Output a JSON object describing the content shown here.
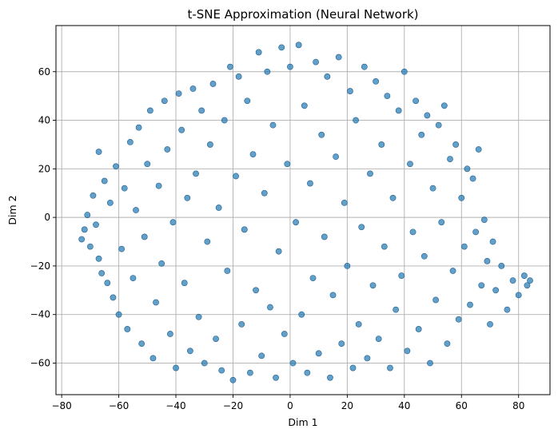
{
  "chart_data": {
    "type": "scatter",
    "title": "t-SNE Approximation (Neural Network)",
    "xlabel": "Dim 1",
    "ylabel": "Dim 2",
    "xlim": [
      -82,
      91
    ],
    "ylim": [
      -73,
      79
    ],
    "xticks": [
      -80,
      -60,
      -40,
      -20,
      0,
      20,
      40,
      60,
      80
    ],
    "yticks": [
      -60,
      -40,
      -20,
      0,
      20,
      40,
      60
    ],
    "xtick_labels": [
      "−80",
      "−60",
      "−40",
      "−20",
      "0",
      "20",
      "40",
      "60",
      "80"
    ],
    "ytick_labels": [
      "−60",
      "−40",
      "−20",
      "0",
      "20",
      "40",
      "60"
    ],
    "grid": true,
    "legend": "none",
    "marker_color": "#1f77b4",
    "marker_alpha": 0.7,
    "series": [
      {
        "points": [
          [
            -73,
            -9
          ],
          [
            -72,
            -5
          ],
          [
            -71,
            1
          ],
          [
            -70,
            -12
          ],
          [
            -69,
            9
          ],
          [
            -68,
            -3
          ],
          [
            -67,
            27
          ],
          [
            -67,
            -17
          ],
          [
            -66,
            -23
          ],
          [
            -65,
            15
          ],
          [
            -64,
            -27
          ],
          [
            -63,
            6
          ],
          [
            -62,
            -33
          ],
          [
            -61,
            21
          ],
          [
            -60,
            -40
          ],
          [
            -59,
            -13
          ],
          [
            -58,
            12
          ],
          [
            -57,
            -46
          ],
          [
            -56,
            31
          ],
          [
            -55,
            -25
          ],
          [
            -54,
            3
          ],
          [
            -53,
            37
          ],
          [
            -52,
            -52
          ],
          [
            -51,
            -8
          ],
          [
            -50,
            22
          ],
          [
            -49,
            44
          ],
          [
            -48,
            -58
          ],
          [
            -47,
            -35
          ],
          [
            -46,
            13
          ],
          [
            -45,
            -19
          ],
          [
            -44,
            48
          ],
          [
            -43,
            28
          ],
          [
            -42,
            -48
          ],
          [
            -41,
            -2
          ],
          [
            -40,
            -62
          ],
          [
            -39,
            51
          ],
          [
            -38,
            36
          ],
          [
            -37,
            -27
          ],
          [
            -36,
            8
          ],
          [
            -35,
            -55
          ],
          [
            -34,
            53
          ],
          [
            -33,
            18
          ],
          [
            -32,
            -41
          ],
          [
            -31,
            44
          ],
          [
            -30,
            -60
          ],
          [
            -29,
            -10
          ],
          [
            -28,
            30
          ],
          [
            -27,
            55
          ],
          [
            -26,
            -50
          ],
          [
            -25,
            4
          ],
          [
            -24,
            -63
          ],
          [
            -23,
            40
          ],
          [
            -22,
            -22
          ],
          [
            -21,
            62
          ],
          [
            -20,
            -67
          ],
          [
            -19,
            17
          ],
          [
            -18,
            58
          ],
          [
            -17,
            -44
          ],
          [
            -16,
            -5
          ],
          [
            -15,
            48
          ],
          [
            -14,
            -64
          ],
          [
            -13,
            26
          ],
          [
            -12,
            -30
          ],
          [
            -11,
            68
          ],
          [
            -10,
            -57
          ],
          [
            -9,
            10
          ],
          [
            -8,
            60
          ],
          [
            -7,
            -37
          ],
          [
            -6,
            38
          ],
          [
            -5,
            -66
          ],
          [
            -4,
            -14
          ],
          [
            -3,
            70
          ],
          [
            -2,
            -48
          ],
          [
            -1,
            22
          ],
          [
            0,
            62
          ],
          [
            1,
            -60
          ],
          [
            2,
            -2
          ],
          [
            3,
            71
          ],
          [
            4,
            -40
          ],
          [
            5,
            46
          ],
          [
            6,
            -64
          ],
          [
            7,
            14
          ],
          [
            8,
            -25
          ],
          [
            9,
            64
          ],
          [
            10,
            -56
          ],
          [
            11,
            34
          ],
          [
            12,
            -8
          ],
          [
            13,
            58
          ],
          [
            14,
            -66
          ],
          [
            15,
            -32
          ],
          [
            16,
            25
          ],
          [
            17,
            66
          ],
          [
            18,
            -52
          ],
          [
            19,
            6
          ],
          [
            20,
            -20
          ],
          [
            21,
            52
          ],
          [
            22,
            -62
          ],
          [
            23,
            40
          ],
          [
            24,
            -44
          ],
          [
            25,
            -4
          ],
          [
            26,
            62
          ],
          [
            27,
            -58
          ],
          [
            28,
            18
          ],
          [
            29,
            -28
          ],
          [
            30,
            56
          ],
          [
            31,
            -50
          ],
          [
            32,
            30
          ],
          [
            33,
            -12
          ],
          [
            34,
            50
          ],
          [
            35,
            -62
          ],
          [
            36,
            8
          ],
          [
            37,
            -38
          ],
          [
            38,
            44
          ],
          [
            39,
            -24
          ],
          [
            40,
            60
          ],
          [
            41,
            -55
          ],
          [
            42,
            22
          ],
          [
            43,
            -6
          ],
          [
            44,
            48
          ],
          [
            45,
            -46
          ],
          [
            46,
            34
          ],
          [
            47,
            -16
          ],
          [
            48,
            42
          ],
          [
            49,
            -60
          ],
          [
            50,
            12
          ],
          [
            51,
            -34
          ],
          [
            52,
            38
          ],
          [
            53,
            -2
          ],
          [
            54,
            46
          ],
          [
            55,
            -52
          ],
          [
            56,
            24
          ],
          [
            57,
            -22
          ],
          [
            58,
            30
          ],
          [
            59,
            -42
          ],
          [
            60,
            8
          ],
          [
            61,
            -12
          ],
          [
            62,
            20
          ],
          [
            63,
            -36
          ],
          [
            64,
            16
          ],
          [
            65,
            -6
          ],
          [
            66,
            28
          ],
          [
            67,
            -28
          ],
          [
            68,
            -1
          ],
          [
            69,
            -18
          ],
          [
            70,
            -44
          ],
          [
            71,
            -10
          ],
          [
            72,
            -30
          ],
          [
            74,
            -20
          ],
          [
            76,
            -38
          ],
          [
            78,
            -26
          ],
          [
            80,
            -32
          ],
          [
            82,
            -24
          ],
          [
            83,
            -28
          ],
          [
            84,
            -26
          ]
        ]
      }
    ]
  }
}
